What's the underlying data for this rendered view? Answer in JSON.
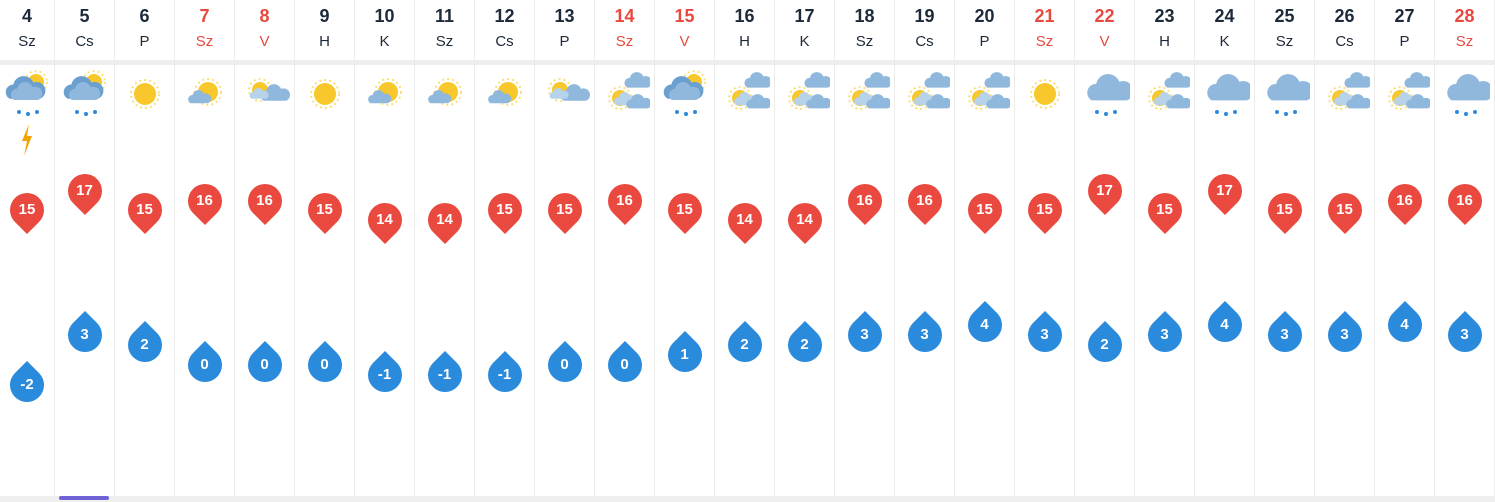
{
  "days": [
    {
      "num": "4",
      "name": "Sz",
      "weekend": false,
      "icon": "cloud-sun-rain-icon",
      "thunder": true,
      "max": 15,
      "min": -2
    },
    {
      "num": "5",
      "name": "Cs",
      "weekend": false,
      "icon": "cloud-sun-rain-icon",
      "thunder": false,
      "max": 17,
      "min": 3
    },
    {
      "num": "6",
      "name": "P",
      "weekend": false,
      "icon": "sun-icon",
      "thunder": false,
      "max": 15,
      "min": 2
    },
    {
      "num": "7",
      "name": "Sz",
      "weekend": true,
      "icon": "sun-small-cloud-icon",
      "thunder": false,
      "max": 16,
      "min": 0
    },
    {
      "num": "8",
      "name": "V",
      "weekend": true,
      "icon": "sun-cloud-icon",
      "thunder": false,
      "max": 16,
      "min": 0
    },
    {
      "num": "9",
      "name": "H",
      "weekend": false,
      "icon": "sun-icon",
      "thunder": false,
      "max": 15,
      "min": 0
    },
    {
      "num": "10",
      "name": "K",
      "weekend": false,
      "icon": "sun-small-cloud-icon",
      "thunder": false,
      "max": 14,
      "min": -1
    },
    {
      "num": "11",
      "name": "Sz",
      "weekend": false,
      "icon": "sun-small-cloud-icon",
      "thunder": false,
      "max": 14,
      "min": -1
    },
    {
      "num": "12",
      "name": "Cs",
      "weekend": false,
      "icon": "sun-small-cloud-icon",
      "thunder": false,
      "max": 15,
      "min": -1
    },
    {
      "num": "13",
      "name": "P",
      "weekend": false,
      "icon": "sun-cloud-icon",
      "thunder": false,
      "max": 15,
      "min": 0
    },
    {
      "num": "14",
      "name": "Sz",
      "weekend": true,
      "icon": "partly-cloudy-icon",
      "thunder": false,
      "max": 16,
      "min": 0
    },
    {
      "num": "15",
      "name": "V",
      "weekend": true,
      "icon": "cloud-sun-rain-icon",
      "thunder": false,
      "max": 15,
      "min": 1
    },
    {
      "num": "16",
      "name": "H",
      "weekend": false,
      "icon": "partly-cloudy-icon",
      "thunder": false,
      "max": 14,
      "min": 2
    },
    {
      "num": "17",
      "name": "K",
      "weekend": false,
      "icon": "partly-cloudy-icon",
      "thunder": false,
      "max": 14,
      "min": 2
    },
    {
      "num": "18",
      "name": "Sz",
      "weekend": false,
      "icon": "partly-cloudy-icon",
      "thunder": false,
      "max": 16,
      "min": 3
    },
    {
      "num": "19",
      "name": "Cs",
      "weekend": false,
      "icon": "partly-cloudy-icon",
      "thunder": false,
      "max": 16,
      "min": 3
    },
    {
      "num": "20",
      "name": "P",
      "weekend": false,
      "icon": "partly-cloudy-icon",
      "thunder": false,
      "max": 15,
      "min": 4
    },
    {
      "num": "21",
      "name": "Sz",
      "weekend": true,
      "icon": "sun-icon",
      "thunder": false,
      "max": 15,
      "min": 3
    },
    {
      "num": "22",
      "name": "V",
      "weekend": true,
      "icon": "rain-cloud-icon",
      "thunder": false,
      "max": 17,
      "min": 2
    },
    {
      "num": "23",
      "name": "H",
      "weekend": false,
      "icon": "partly-cloudy-icon",
      "thunder": false,
      "max": 15,
      "min": 3
    },
    {
      "num": "24",
      "name": "K",
      "weekend": false,
      "icon": "rain-cloud-icon",
      "thunder": false,
      "max": 17,
      "min": 4
    },
    {
      "num": "25",
      "name": "Sz",
      "weekend": false,
      "icon": "rain-cloud-icon",
      "thunder": false,
      "max": 15,
      "min": 3
    },
    {
      "num": "26",
      "name": "Cs",
      "weekend": false,
      "icon": "partly-cloudy-icon",
      "thunder": false,
      "max": 15,
      "min": 3
    },
    {
      "num": "27",
      "name": "P",
      "weekend": false,
      "icon": "partly-cloudy-icon",
      "thunder": false,
      "max": 16,
      "min": 4
    },
    {
      "num": "28",
      "name": "Sz",
      "weekend": true,
      "icon": "rain-cloud-icon",
      "thunder": false,
      "max": 16,
      "min": 3
    }
  ],
  "colors": {
    "max_pin": "#e9493e",
    "min_drop": "#2a8adb",
    "weekend_text": "#e8493f",
    "text": "#1d2a3a",
    "scroll_thumb": "#6e62d6"
  }
}
